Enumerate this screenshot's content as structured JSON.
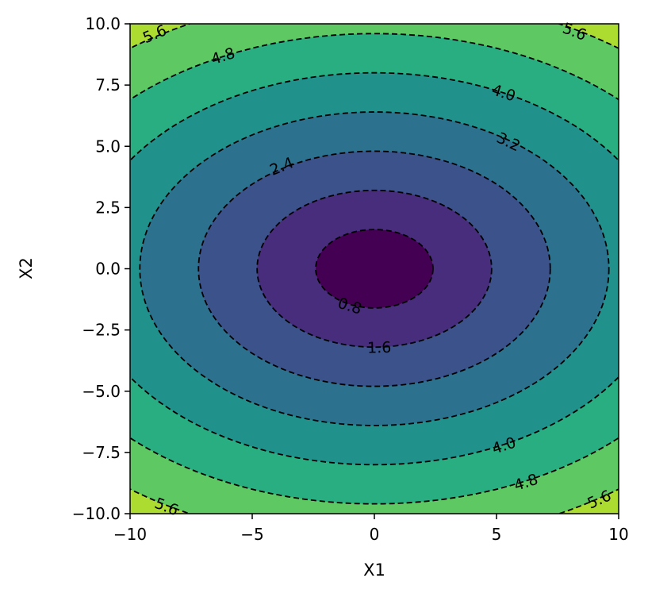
{
  "chart_data": {
    "type": "contour",
    "title": "",
    "xlabel": "X1",
    "ylabel": "X2",
    "xlim": [
      -10,
      10
    ],
    "ylim": [
      -10,
      10
    ],
    "x_ticks": [
      -10,
      -5,
      0,
      5,
      10
    ],
    "x_tick_labels": [
      "−10",
      "−5",
      "0",
      "5",
      "10"
    ],
    "y_ticks": [
      -10,
      -7.5,
      -5,
      -2.5,
      0,
      2.5,
      5,
      7.5,
      10
    ],
    "y_tick_labels": [
      "−10.0",
      "−7.5",
      "−5.0",
      "−2.5",
      "0.0",
      "2.5",
      "5.0",
      "7.5",
      "10.0"
    ],
    "function": "sqrt((x1/1.5)^2 + x2^2)/2",
    "filled_levels": [
      0,
      0.8,
      1.6,
      2.4,
      3.2,
      4.0,
      4.8,
      5.6,
      6.4
    ],
    "line_levels": [
      0.8,
      1.6,
      2.4,
      3.2,
      4.0,
      4.8,
      5.6
    ],
    "colors": [
      "#440154",
      "#472d7b",
      "#3b528b",
      "#2c728e",
      "#21918c",
      "#28ae80",
      "#5ec962",
      "#addc30",
      "#fde725"
    ],
    "line_style": "dashed",
    "line_color": "#000000",
    "contour_labels": [
      {
        "text": "0.8",
        "x": -1.0,
        "y": -1.5
      },
      {
        "text": "1.6",
        "x": 0.2,
        "y": -3.2
      },
      {
        "text": "2.4",
        "x": -3.8,
        "y": 4.2
      },
      {
        "text": "3.2",
        "x": 5.5,
        "y": 5.2
      },
      {
        "text": "4.0",
        "x": 5.3,
        "y": 7.2
      },
      {
        "text": "4.0",
        "x": 5.3,
        "y": -7.2
      },
      {
        "text": "4.8",
        "x": -6.2,
        "y": 8.7
      },
      {
        "text": "4.8",
        "x": 6.2,
        "y": -8.7
      },
      {
        "text": "5.6",
        "x": -9.0,
        "y": 9.6
      },
      {
        "text": "5.6",
        "x": 8.2,
        "y": 9.7
      },
      {
        "text": "5.6",
        "x": -8.5,
        "y": -9.7
      },
      {
        "text": "5.6",
        "x": 9.2,
        "y": -9.4
      }
    ]
  }
}
